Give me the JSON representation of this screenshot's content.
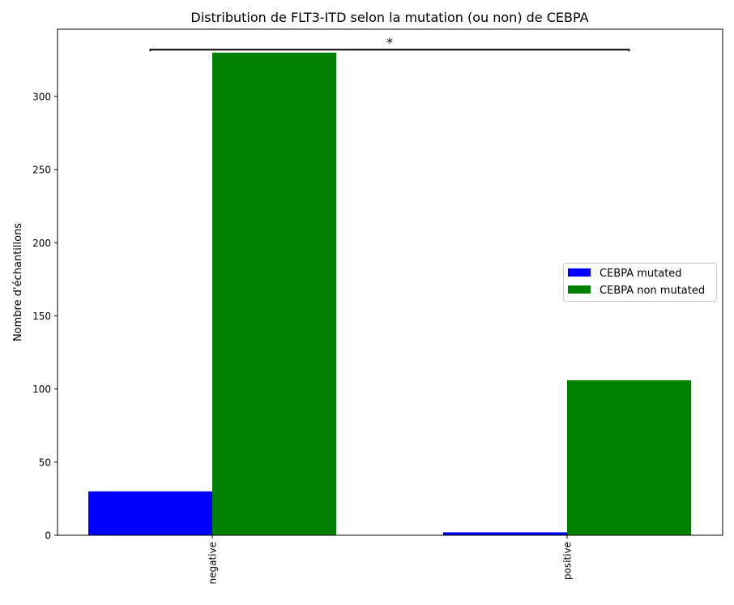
{
  "chart_data": {
    "type": "bar",
    "title": "Distribution de FLT3-ITD selon la mutation (ou non) de CEBPA",
    "xlabel": "",
    "ylabel": "Nombre d'échantillons",
    "categories": [
      "negative",
      "positive"
    ],
    "series": [
      {
        "name": "CEBPA mutated",
        "color": "#0000ff",
        "values": [
          30,
          2
        ]
      },
      {
        "name": "CEBPA non mutated",
        "color": "#008000",
        "values": [
          330,
          106
        ]
      }
    ],
    "ylim": [
      0,
      346
    ],
    "yticks": [
      0,
      50,
      100,
      150,
      200,
      250,
      300
    ],
    "ytick_labels": [
      "0",
      "50",
      "100",
      "150",
      "200",
      "250",
      "300"
    ],
    "grid": false,
    "legend_position": "center-right",
    "annotations": [
      {
        "text": "*",
        "type": "significance-bracket",
        "y": 332
      }
    ]
  }
}
